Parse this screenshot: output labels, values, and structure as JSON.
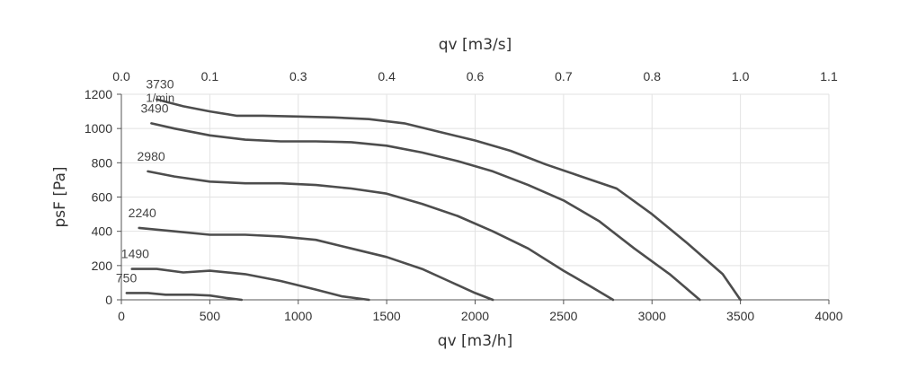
{
  "chart_data": {
    "type": "line",
    "xlabel_bottom": "qv [m3/h]",
    "xlabel_top": "qv [m3/s]",
    "ylabel": "psF [Pa]",
    "xlim": [
      0,
      4000
    ],
    "ylim": [
      0,
      1200
    ],
    "x_ticks": [
      "0",
      "500",
      "1000",
      "1500",
      "2000",
      "2500",
      "3000",
      "3500",
      "4000"
    ],
    "y_ticks": [
      "0",
      "200",
      "400",
      "600",
      "800",
      "1000",
      "1200"
    ],
    "top_ticks": [
      {
        "label": "0.0",
        "at": 0
      },
      {
        "label": "0.1",
        "at": 500
      },
      {
        "label": "0.3",
        "at": 1000
      },
      {
        "label": "0.4",
        "at": 1500
      },
      {
        "label": "0.6",
        "at": 2000
      },
      {
        "label": "0.7",
        "at": 2500
      },
      {
        "label": "0.8",
        "at": 3000
      },
      {
        "label": "1.0",
        "at": 3500
      },
      {
        "label": "1.1",
        "at": 4000
      }
    ],
    "speed_unit": "1/min",
    "grid": true,
    "line_color": "#4d4d4d",
    "grid_color": "#e2e2e2",
    "series": [
      {
        "name": "3730",
        "x": [
          200,
          350,
          500,
          650,
          800,
          1000,
          1200,
          1400,
          1600,
          1800,
          2000,
          2200,
          2400,
          2600,
          2800,
          3000,
          3200,
          3400,
          3500
        ],
        "y": [
          1170,
          1130,
          1100,
          1075,
          1075,
          1070,
          1065,
          1055,
          1030,
          980,
          930,
          870,
          790,
          720,
          650,
          500,
          330,
          150,
          0
        ]
      },
      {
        "name": "3490",
        "x": [
          170,
          300,
          500,
          700,
          900,
          1100,
          1300,
          1500,
          1700,
          1900,
          2100,
          2300,
          2500,
          2700,
          2900,
          3100,
          3270
        ],
        "y": [
          1030,
          1000,
          960,
          935,
          925,
          925,
          920,
          900,
          860,
          810,
          750,
          670,
          580,
          460,
          300,
          150,
          0
        ]
      },
      {
        "name": "2980",
        "x": [
          150,
          300,
          500,
          700,
          900,
          1100,
          1300,
          1500,
          1700,
          1900,
          2100,
          2300,
          2500,
          2650,
          2780
        ],
        "y": [
          750,
          720,
          690,
          680,
          680,
          670,
          650,
          620,
          560,
          490,
          400,
          300,
          170,
          80,
          0
        ]
      },
      {
        "name": "2240",
        "x": [
          100,
          300,
          500,
          700,
          900,
          1100,
          1300,
          1500,
          1700,
          1850,
          2000,
          2100
        ],
        "y": [
          420,
          400,
          380,
          380,
          370,
          350,
          300,
          250,
          180,
          110,
          40,
          0
        ]
      },
      {
        "name": "1490",
        "x": [
          60,
          200,
          350,
          500,
          700,
          900,
          1100,
          1250,
          1400
        ],
        "y": [
          180,
          180,
          160,
          170,
          150,
          110,
          60,
          20,
          0
        ]
      },
      {
        "name": "750",
        "x": [
          30,
          150,
          250,
          400,
          500,
          600,
          680
        ],
        "y": [
          40,
          40,
          30,
          30,
          25,
          10,
          0
        ]
      }
    ]
  }
}
